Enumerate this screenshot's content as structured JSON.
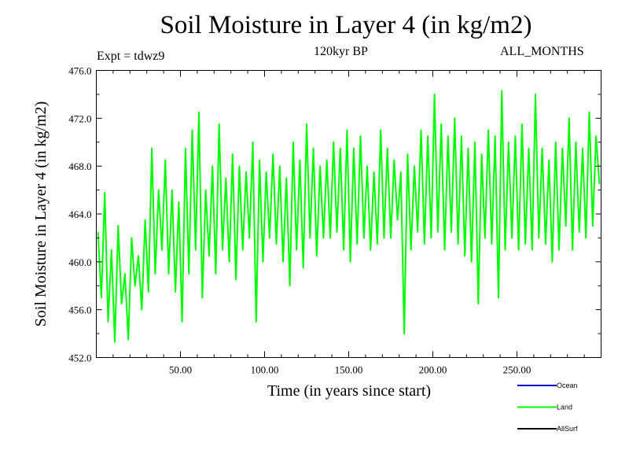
{
  "header": {
    "title": "Soil Moisture in Layer 4 (in kg/m2)",
    "expt": "Expt = tdwz9",
    "period": "120kyr BP",
    "months": "ALL_MONTHS"
  },
  "chart_data": {
    "type": "line",
    "title": "Soil Moisture in Layer 4 (in kg/m2)",
    "xlabel": "Time (in years since start)",
    "ylabel": "Soil Moisture in Layer 4 (in kg/m2)",
    "xlim": [
      0,
      300
    ],
    "ylim": [
      452.0,
      476.0
    ],
    "x_ticks": [
      50,
      100,
      150,
      200,
      250
    ],
    "x_tick_labels": [
      "50.00",
      "100.00",
      "150.00",
      "200.00",
      "250.00"
    ],
    "y_ticks": [
      452,
      456,
      460,
      464,
      468,
      472,
      476
    ],
    "y_tick_labels": [
      "452.0",
      "456.0",
      "460.0",
      "464.0",
      "468.0",
      "472.0",
      "476.0"
    ],
    "grid": false,
    "legend_position": "bottom-right",
    "series": [
      {
        "name": "Ocean",
        "color": "#0000cc",
        "values": []
      },
      {
        "name": "Land",
        "color": "#00ff00",
        "x": [
          1,
          3,
          5,
          7,
          9,
          11,
          13,
          15,
          17,
          19,
          21,
          23,
          25,
          27,
          29,
          31,
          33,
          35,
          37,
          39,
          41,
          43,
          45,
          47,
          49,
          51,
          53,
          55,
          57,
          59,
          61,
          63,
          65,
          67,
          69,
          71,
          73,
          75,
          77,
          79,
          81,
          83,
          85,
          87,
          89,
          91,
          93,
          95,
          97,
          99,
          101,
          103,
          105,
          107,
          109,
          111,
          113,
          115,
          117,
          119,
          121,
          123,
          125,
          127,
          129,
          131,
          133,
          135,
          137,
          139,
          141,
          143,
          145,
          147,
          149,
          151,
          153,
          155,
          157,
          159,
          161,
          163,
          165,
          167,
          169,
          171,
          173,
          175,
          177,
          179,
          181,
          183,
          185,
          187,
          189,
          191,
          193,
          195,
          197,
          199,
          201,
          203,
          205,
          207,
          209,
          211,
          213,
          215,
          217,
          219,
          221,
          223,
          225,
          227,
          229,
          231,
          233,
          235,
          237,
          239,
          241,
          243,
          245,
          247,
          249,
          251,
          253,
          255,
          257,
          259,
          261,
          263,
          265,
          267,
          269,
          271,
          273,
          275,
          277,
          279,
          281,
          283,
          285,
          287,
          289,
          291,
          293,
          295,
          297,
          299
        ],
        "values": [
          462.5,
          457.0,
          465.8,
          455.0,
          461.0,
          453.3,
          463.0,
          456.5,
          459.0,
          453.5,
          462.0,
          458.0,
          460.5,
          456.0,
          463.5,
          457.5,
          469.5,
          459.0,
          466.0,
          461.0,
          468.5,
          459.0,
          466.0,
          457.5,
          465.0,
          455.0,
          469.5,
          459.0,
          471.0,
          461.0,
          472.5,
          457.0,
          466.0,
          460.5,
          468.0,
          459.0,
          471.5,
          461.0,
          467.0,
          460.0,
          469.0,
          458.5,
          468.0,
          461.0,
          467.5,
          462.0,
          470.0,
          455.0,
          468.5,
          460.0,
          467.5,
          462.0,
          469.0,
          461.5,
          468.0,
          460.0,
          467.0,
          458.0,
          470.0,
          461.0,
          468.5,
          459.5,
          471.5,
          462.0,
          469.5,
          460.5,
          468.0,
          462.0,
          468.5,
          462.0,
          470.0,
          462.5,
          469.5,
          461.0,
          471.0,
          460.0,
          469.5,
          461.5,
          470.5,
          462.0,
          468.0,
          461.0,
          467.5,
          461.5,
          471.0,
          462.0,
          469.5,
          462.0,
          468.5,
          463.5,
          467.5,
          454.0,
          469.0,
          461.0,
          468.0,
          462.5,
          471.0,
          461.5,
          470.5,
          462.0,
          474.0,
          462.5,
          471.5,
          461.0,
          470.5,
          462.5,
          472.0,
          461.5,
          470.5,
          460.5,
          469.5,
          460.0,
          470.0,
          456.5,
          469.0,
          462.0,
          471.0,
          461.5,
          470.5,
          457.0,
          474.3,
          461.0,
          470.0,
          462.0,
          470.5,
          461.0,
          471.5,
          461.5,
          469.5,
          461.0,
          474.0,
          462.0,
          469.5,
          461.5,
          468.5,
          460.0,
          470.0,
          461.0,
          469.5,
          463.0,
          472.0,
          461.0,
          470.0,
          462.5,
          469.5,
          462.0,
          472.5,
          463.0,
          470.5,
          466.5
        ]
      },
      {
        "name": "AllSurf",
        "color": "#000000",
        "values": []
      }
    ]
  }
}
